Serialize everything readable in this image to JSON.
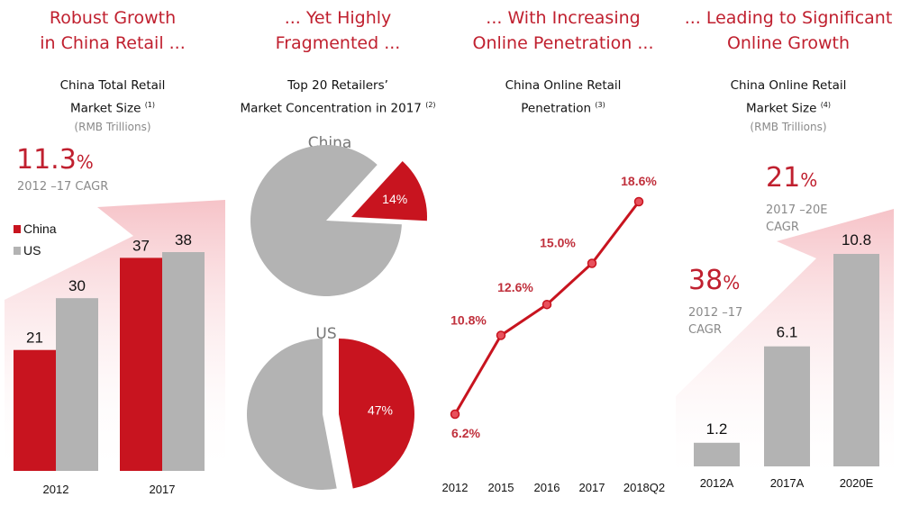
{
  "colors": {
    "red": "#c8141f",
    "gray": "#b3b3b3",
    "headline": "#c0202f",
    "muted": "#8a8a8a",
    "pink": "#f7c9cd"
  },
  "panels": [
    {
      "headline": [
        "Robust Growth",
        "in China Retail ..."
      ],
      "subtitle": [
        "China Total Retail",
        "Market Size"
      ],
      "note": "(1)",
      "units": "(RMB Trillions)",
      "cagr_value": "11.3",
      "cagr_label": "2012 –17 CAGR"
    },
    {
      "headline": [
        "... Yet Highly",
        "Fragmented ..."
      ],
      "subtitle": [
        "Top 20 Retailers’",
        "Market Concentration in 2017"
      ],
      "note": "(2)"
    },
    {
      "headline": [
        "... With Increasing",
        "Online Penetration ..."
      ],
      "subtitle": [
        "China Online Retail",
        "Penetration"
      ],
      "note": "(3)"
    },
    {
      "headline": [
        "... Leading to Significant",
        "Online Growth"
      ],
      "subtitle": [
        "China Online Retail",
        "Market Size"
      ],
      "note": "(4)",
      "units": "(RMB Trillions)",
      "cagr1_value": "21",
      "cagr1_label": [
        "2017 –20E",
        "CAGR"
      ],
      "cagr2_value": "38",
      "cagr2_label": [
        "2012 –17",
        "CAGR"
      ]
    }
  ],
  "pct_sign": "%",
  "chart_data": [
    {
      "type": "bar",
      "title": "China Total Retail Market Size (RMB Trillions)",
      "categories": [
        "2012",
        "2017"
      ],
      "series": [
        {
          "name": "China",
          "values": [
            21,
            37
          ]
        },
        {
          "name": "US",
          "values": [
            30,
            38
          ]
        }
      ],
      "legend": [
        "China",
        "US"
      ],
      "legend_position": "left",
      "ylim": [
        0,
        45
      ]
    },
    {
      "type": "pie",
      "title": "Top 20 Retailers’ Market Concentration in 2017",
      "pies": [
        {
          "name": "China",
          "slices": [
            {
              "label": "Top 20",
              "value": 14,
              "text": "14%"
            },
            {
              "label": "Other",
              "value": 86
            }
          ]
        },
        {
          "name": "US",
          "slices": [
            {
              "label": "Top 20",
              "value": 47,
              "text": "47%"
            },
            {
              "label": "Other",
              "value": 53
            }
          ]
        }
      ]
    },
    {
      "type": "line",
      "title": "China Online Retail Penetration",
      "x": [
        "2012",
        "2015",
        "2016",
        "2017",
        "2018Q2"
      ],
      "values": [
        6.2,
        10.8,
        12.6,
        15.0,
        18.6
      ],
      "labels": [
        "6.2%",
        "10.8%",
        "12.6%",
        "15.0%",
        "18.6%"
      ],
      "ylim": [
        0,
        20
      ]
    },
    {
      "type": "bar",
      "title": "China Online Retail Market Size (RMB Trillions)",
      "categories": [
        "2012A",
        "2017A",
        "2020E"
      ],
      "values": [
        1.2,
        6.1,
        10.8
      ],
      "labels": [
        "1.2",
        "6.1",
        "10.8"
      ],
      "ylim": [
        0,
        12
      ]
    }
  ]
}
